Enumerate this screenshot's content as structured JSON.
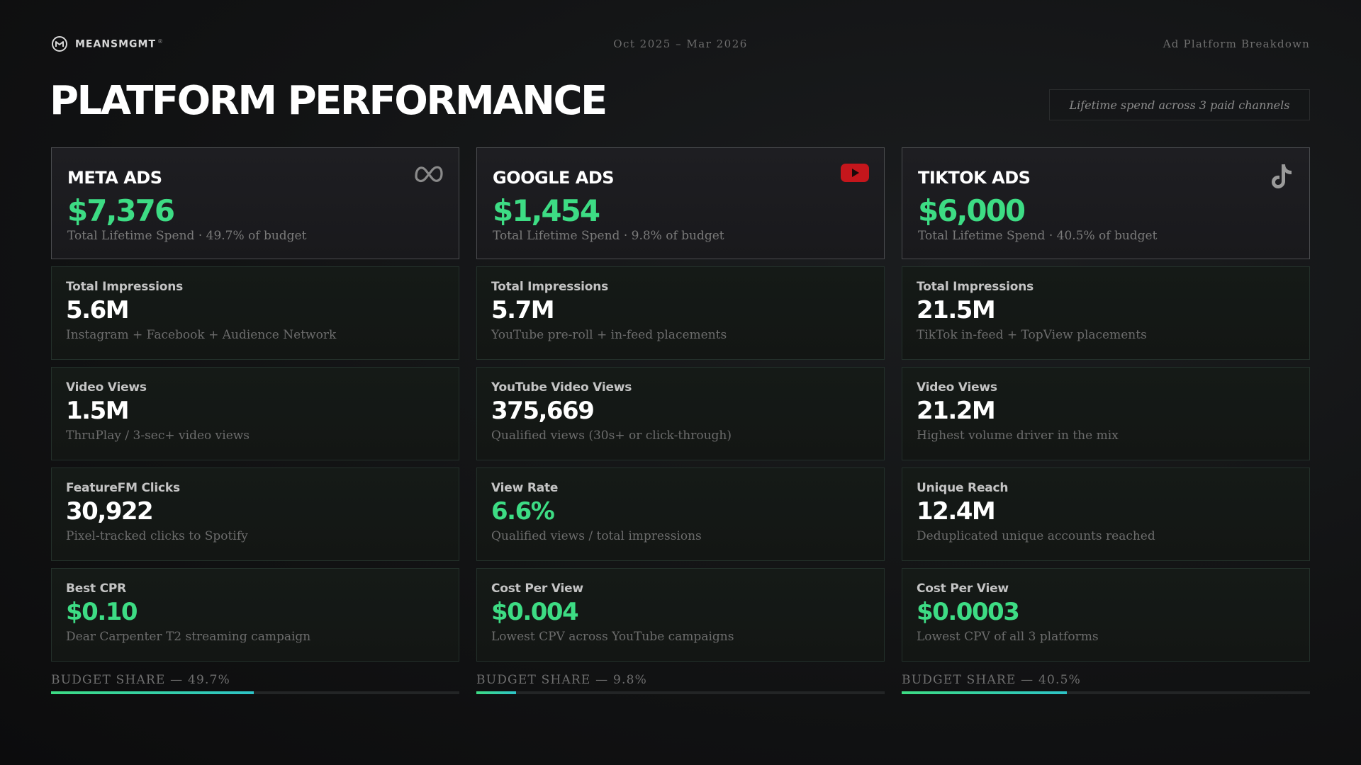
{
  "header": {
    "brand_name": "MEANSMGMT",
    "brand_mark": "®",
    "date_range": "Oct 2025 – Mar 2026",
    "section": "Ad Platform Breakdown"
  },
  "page": {
    "title": "PLATFORM PERFORMANCE",
    "subtitle": "Lifetime spend across 3 paid channels"
  },
  "colors": {
    "accent_green": "#3ddc84",
    "accent_teal": "#2ec4c7",
    "youtube_red": "#c4161c"
  },
  "platforms": [
    {
      "name": "META ADS",
      "icon": "meta-infinity-icon",
      "spend": "$7,376",
      "caption": "Total Lifetime Spend · 49.7% of budget",
      "metrics": [
        {
          "label": "Total Impressions",
          "value": "5.6M",
          "sub": "Instagram + Facebook + Audience Network"
        },
        {
          "label": "Video Views",
          "value": "1.5M",
          "sub": "ThruPlay / 3-sec+ video views"
        },
        {
          "label": "FeatureFM Clicks",
          "value": "30,922",
          "sub": "Pixel-tracked clicks to Spotify"
        },
        {
          "label": "Best CPR",
          "value": "$0.10",
          "sub": "Dear Carpenter T2 streaming campaign"
        }
      ],
      "budget_label": "BUDGET SHARE — 49.7%",
      "budget_share": 0.497
    },
    {
      "name": "GOOGLE ADS",
      "icon": "youtube-play-icon",
      "spend": "$1,454",
      "caption": "Total Lifetime Spend · 9.8% of budget",
      "metrics": [
        {
          "label": "Total Impressions",
          "value": "5.7M",
          "sub": "YouTube pre-roll + in-feed placements"
        },
        {
          "label": "YouTube Video Views",
          "value": "375,669",
          "sub": "Qualified views (30s+ or click-through)"
        },
        {
          "label": "View Rate",
          "value": "6.6%",
          "sub": "Qualified views / total impressions"
        },
        {
          "label": "Cost Per View",
          "value": "$0.004",
          "sub": "Lowest CPV across YouTube campaigns"
        }
      ],
      "budget_label": "BUDGET SHARE — 9.8%",
      "budget_share": 0.098
    },
    {
      "name": "TIKTOK ADS",
      "icon": "tiktok-note-icon",
      "spend": "$6,000",
      "caption": "Total Lifetime Spend · 40.5% of budget",
      "metrics": [
        {
          "label": "Total Impressions",
          "value": "21.5M",
          "sub": "TikTok in-feed + TopView placements"
        },
        {
          "label": "Video Views",
          "value": "21.2M",
          "sub": "Highest volume driver in the mix"
        },
        {
          "label": "Unique Reach",
          "value": "12.4M",
          "sub": "Deduplicated unique accounts reached"
        },
        {
          "label": "Cost Per View",
          "value": "$0.0003",
          "sub": "Lowest CPV of all 3 platforms"
        }
      ],
      "budget_label": "BUDGET SHARE — 40.5%",
      "budget_share": 0.405
    }
  ]
}
